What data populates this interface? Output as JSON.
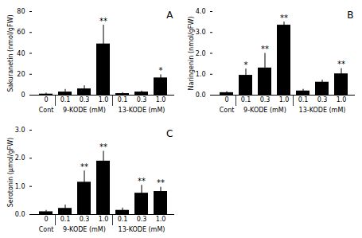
{
  "chart_data": [
    {
      "type": "bar",
      "title": "A",
      "ylabel": "Sakuranetin (nmol/gFW)",
      "categories": [
        "0",
        "0.1",
        "0.3",
        "1.0",
        "0.1",
        "0.3",
        "1.0"
      ],
      "values": [
        1.0,
        3.0,
        6.0,
        49.0,
        1.5,
        3.0,
        16.5
      ],
      "errors": [
        1.0,
        2.5,
        3.0,
        18.0,
        1.0,
        1.0,
        3.0
      ],
      "asterisks": [
        null,
        null,
        null,
        "**",
        null,
        null,
        "*"
      ],
      "group_labels": [
        "Cont",
        "9-KODE (mM)",
        "13-KODE (mM)"
      ],
      "color": "#000000",
      "ylim": [
        0,
        80
      ],
      "yticks": [
        0,
        20,
        40,
        60,
        80
      ],
      "grid": false
    },
    {
      "type": "bar",
      "title": "B",
      "ylabel": "Naringenin (nmol/gFW)",
      "categories": [
        "0",
        "0.1",
        "0.3",
        "1.0",
        "0.1",
        "0.3",
        "1.0"
      ],
      "values": [
        0.12,
        0.95,
        1.3,
        3.35,
        0.2,
        0.62,
        1.02
      ],
      "errors": [
        0.05,
        0.3,
        0.7,
        0.15,
        0.08,
        0.1,
        0.25
      ],
      "asterisks": [
        null,
        "*",
        "**",
        "**",
        null,
        null,
        "**"
      ],
      "group_labels": [
        "Cont",
        "9-KODE (mM)",
        "13-KODE (mM)"
      ],
      "color": "#000000",
      "ylim": [
        0,
        4
      ],
      "yticks": [
        0,
        1,
        2,
        3,
        4
      ],
      "grid": false
    },
    {
      "type": "bar",
      "title": "C",
      "ylabel": "Serotonin (μmol/gFW)",
      "categories": [
        "0",
        "0.1",
        "0.3",
        "1.0",
        "0.1",
        "0.3",
        "1.0"
      ],
      "values": [
        0.1,
        0.22,
        1.15,
        1.9,
        0.15,
        0.76,
        0.82
      ],
      "errors": [
        0.05,
        0.12,
        0.4,
        0.35,
        0.08,
        0.28,
        0.15
      ],
      "asterisks": [
        null,
        null,
        "**",
        "**",
        null,
        "**",
        "**"
      ],
      "group_labels": [
        "Cont",
        "9-KODE (mM)",
        "13-KODE (mM)"
      ],
      "color": "#000000",
      "ylim": [
        0,
        3
      ],
      "yticks": [
        0,
        1,
        2,
        3
      ],
      "grid": false
    }
  ]
}
